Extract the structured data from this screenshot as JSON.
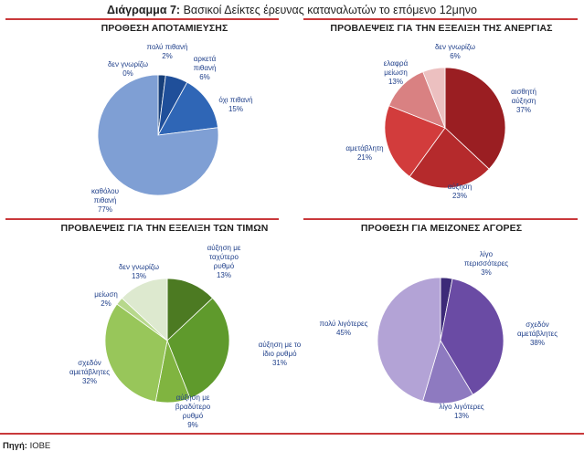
{
  "header": {
    "figure_label": "Διάγραμμα 7:",
    "title": "Βασικοί Δείκτες έρευνας καταναλωτών το επόμενο 12μηνο"
  },
  "source": {
    "label": "Πηγή:",
    "value": "ΙΟΒΕ"
  },
  "chart_data": [
    {
      "type": "pie",
      "title": "ΠΡΟΘΕΣΗ ΑΠΟΤΑΜΙΕΥΣΗΣ",
      "slices": [
        {
          "label": [
            "πολύ πιθανή"
          ],
          "pct": "2%",
          "value": 2,
          "color": "#173f7a"
        },
        {
          "label": [
            "αρκετά",
            "πιθανή"
          ],
          "pct": "6%",
          "value": 6,
          "color": "#1f4f9a"
        },
        {
          "label": [
            "όχι πιθανή"
          ],
          "pct": "15%",
          "value": 15,
          "color": "#2f66b6"
        },
        {
          "label": [
            "καθόλου",
            "πιθανή"
          ],
          "pct": "77%",
          "value": 77,
          "color": "#7f9fd4"
        },
        {
          "label": [
            "δεν γνωρίζω"
          ],
          "pct": "0%",
          "value": 0,
          "color": "#aec3e6"
        }
      ]
    },
    {
      "type": "pie",
      "title": "ΠΡΟΒΛΕΨΕΙΣ ΓΙΑ ΤΗΝ ΕΞΕΛΙΞΗ ΤΗΣ ΑΝΕΡΓΙΑΣ",
      "slices": [
        {
          "label": [
            "αισθητή",
            "αύξηση"
          ],
          "pct": "37%",
          "value": 37,
          "color": "#9a1e22"
        },
        {
          "label": [
            "αύξηση"
          ],
          "pct": "23%",
          "value": 23,
          "color": "#b52a2c"
        },
        {
          "label": [
            "αμετάβλητη"
          ],
          "pct": "21%",
          "value": 21,
          "color": "#d23c3c"
        },
        {
          "label": [
            "ελαφρά",
            "μείωση"
          ],
          "pct": "13%",
          "value": 13,
          "color": "#d98182"
        },
        {
          "label": [
            "δεν γνωρίζω"
          ],
          "pct": "6%",
          "value": 6,
          "color": "#ecc0c0"
        }
      ]
    },
    {
      "type": "pie",
      "title": "ΠΡΟΒΛΕΨΕΙΣ ΓΙΑ ΤΗΝ ΕΞΕΛΙΞΗ ΤΩΝ ΤΙΜΩΝ",
      "slices": [
        {
          "label": [
            "αύξηση με",
            "ταχύτερο",
            "ρυθμό"
          ],
          "pct": "13%",
          "value": 13,
          "color": "#4c7a22"
        },
        {
          "label": [
            "αύξηση με το",
            "ίδιο ρυθμό"
          ],
          "pct": "31%",
          "value": 31,
          "color": "#5f9a2c"
        },
        {
          "label": [
            "αύξηση με",
            "βραδύτερο",
            "ρυθμό"
          ],
          "pct": "9%",
          "value": 9,
          "color": "#80b440"
        },
        {
          "label": [
            "σχεδόν",
            "αμετάβλητες"
          ],
          "pct": "32%",
          "value": 32,
          "color": "#98c65a"
        },
        {
          "label": [
            "μείωση"
          ],
          "pct": "2%",
          "value": 2,
          "color": "#b7d88c"
        },
        {
          "label": [
            "δεν γνωρίζω"
          ],
          "pct": "13%",
          "value": 13,
          "color": "#dde9cf"
        }
      ]
    },
    {
      "type": "pie",
      "title": "ΠΡΟΘΕΣΗ ΓΙΑ ΜΕΙΖΟΝΕΣ ΑΓΟΡΕΣ",
      "slices": [
        {
          "label": [
            "λίγο",
            "περισσότερες"
          ],
          "pct": "3%",
          "value": 3,
          "color": "#3c2a78"
        },
        {
          "label": [
            "σχεδόν",
            "αμετάβλητες"
          ],
          "pct": "38%",
          "value": 38,
          "color": "#6a4ba4"
        },
        {
          "label": [
            "λίγο λιγότερες"
          ],
          "pct": "13%",
          "value": 13,
          "color": "#8e7ac0"
        },
        {
          "label": [
            "πολύ λιγότερες"
          ],
          "pct": "45%",
          "value": 45,
          "color": "#b3a3d6"
        }
      ]
    }
  ]
}
